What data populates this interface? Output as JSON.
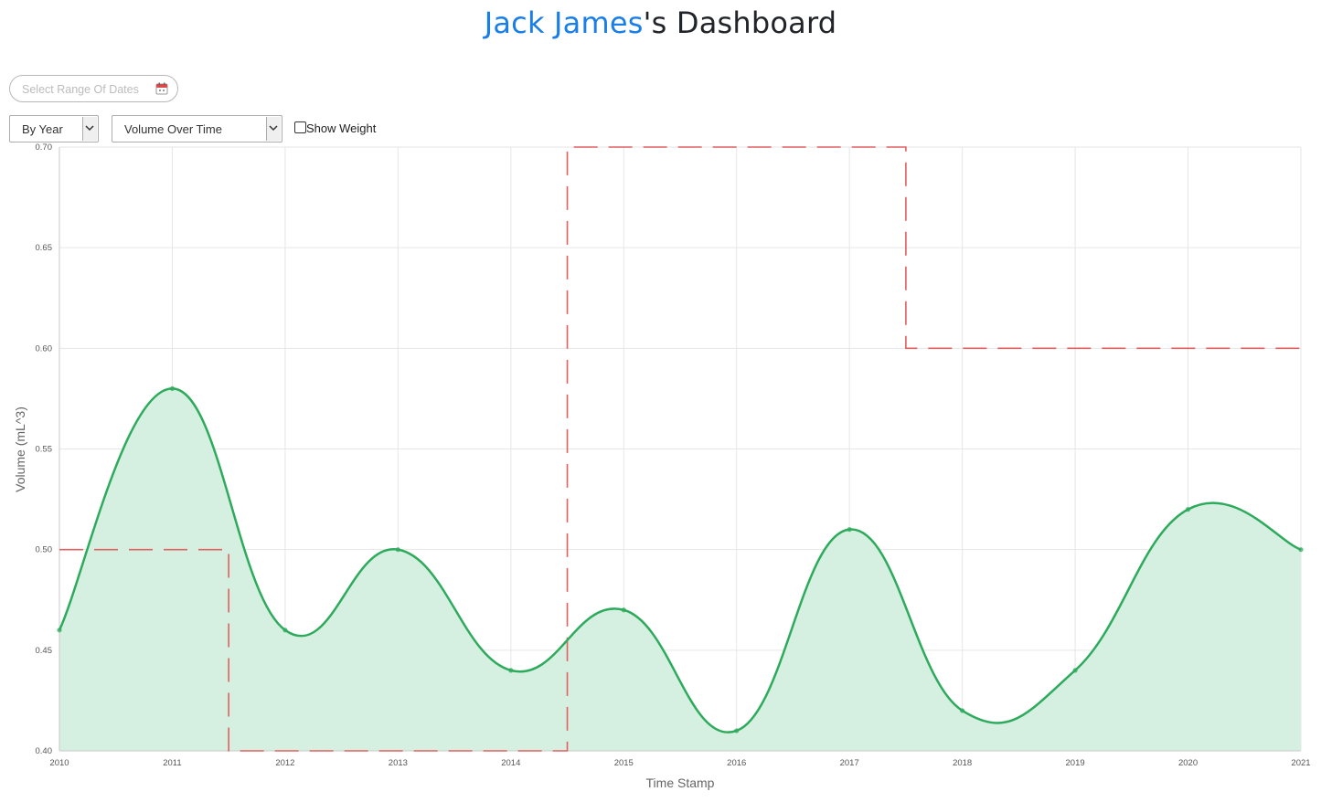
{
  "header": {
    "user_name": "Jack James",
    "title_suffix": "'s Dashboard"
  },
  "controls": {
    "date_range_placeholder": "Select Range Of Dates",
    "period_select": "By Year",
    "metric_select": "Volume Over Time",
    "show_weight_label": "Show Weight",
    "show_weight_checked": false
  },
  "chart_data": {
    "type": "area",
    "xlabel": "Time Stamp",
    "ylabel": "Volume (mL^3)",
    "x": [
      "2010",
      "2011",
      "2012",
      "2013",
      "2014",
      "2015",
      "2016",
      "2017",
      "2018",
      "2019",
      "2020",
      "2021"
    ],
    "series": [
      {
        "values": [
          0.46,
          0.58,
          0.46,
          0.5,
          0.44,
          0.47,
          0.41,
          0.51,
          0.42,
          0.44,
          0.52,
          0.5
        ],
        "color": "#2eaa5c",
        "fill": "#d5f0e0"
      }
    ],
    "reference_line": {
      "color": "#e06060",
      "style": "dashed",
      "steps": [
        {
          "x_from": 0,
          "x_to": 1.5,
          "y": 0.5
        },
        {
          "x_from": 1.5,
          "x_to": 4.5,
          "y": 0.4
        },
        {
          "x_from": 4.5,
          "x_to": 7.5,
          "y": 0.7
        },
        {
          "x_from": 7.5,
          "x_to": 11,
          "y": 0.6
        }
      ]
    },
    "ylim": [
      0.4,
      0.7
    ],
    "yticks": [
      "0.40",
      "0.45",
      "0.50",
      "0.55",
      "0.60",
      "0.65",
      "0.70"
    ],
    "grid": true,
    "legend": "none"
  }
}
